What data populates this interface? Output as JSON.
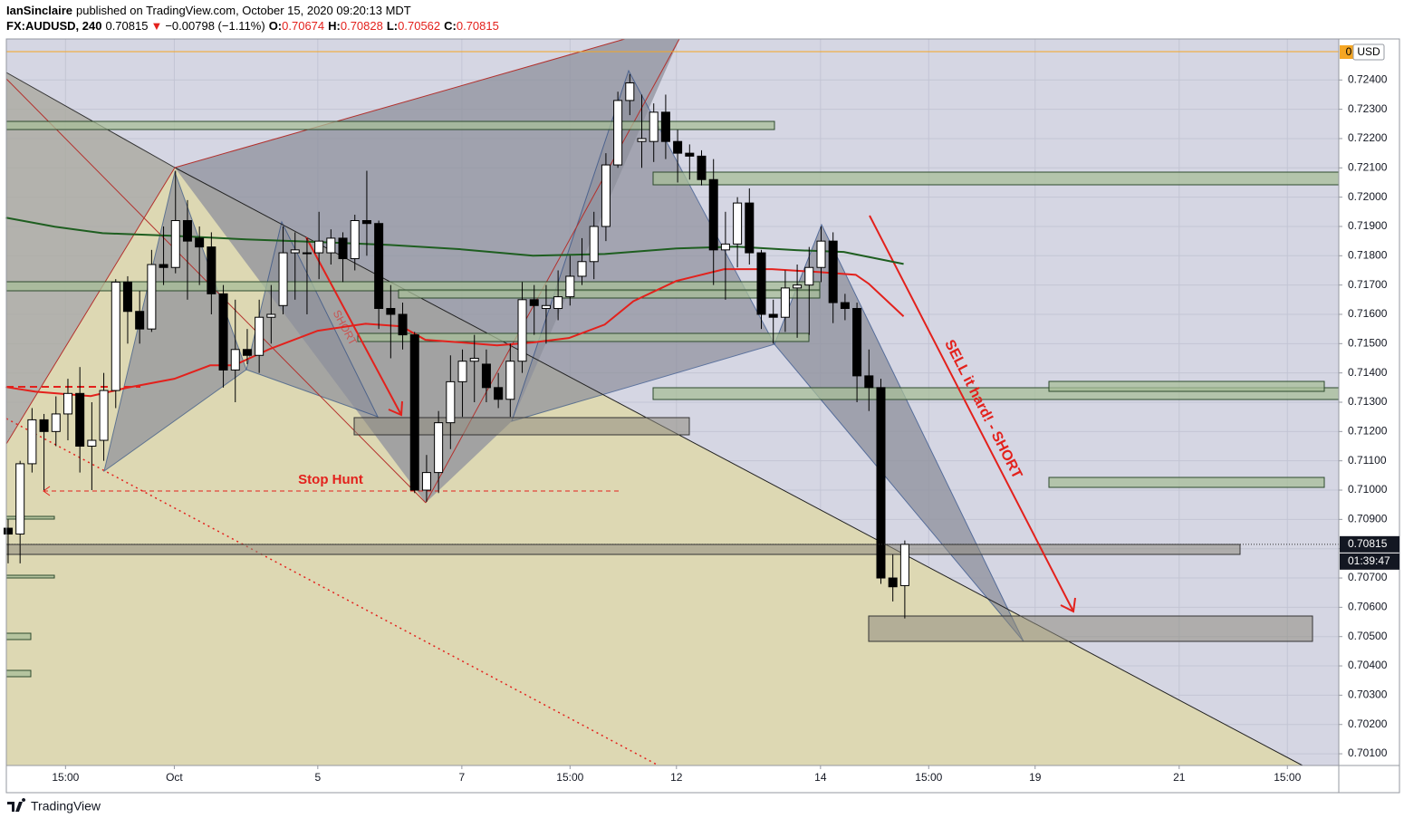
{
  "header": {
    "author": "IanSinclaire",
    "published": "published on TradingView.com, October 15, 2020 09:20:13 MDT",
    "symbol": "FX:AUDUSD, 240",
    "last": "0.70815",
    "arrow": "▼",
    "change": "−0.00798 (−1.11%)",
    "open_label": "O:",
    "open": "0.70674",
    "high_label": "H:",
    "high": "0.70828",
    "low_label": "L:",
    "low": "0.70562",
    "close_label": "C:",
    "close": "0.70815"
  },
  "chart_data": {
    "type": "candlestick",
    "x": [
      0,
      1,
      2,
      3,
      4,
      5,
      6,
      7,
      8,
      9,
      10,
      11,
      12,
      13,
      14,
      15,
      16,
      17,
      18,
      19,
      20,
      21,
      22,
      23,
      24,
      25,
      26,
      27,
      28,
      29,
      30,
      31,
      32,
      33,
      34,
      35,
      36,
      37,
      38,
      39,
      40,
      41,
      42,
      43,
      44,
      45,
      46,
      47,
      48,
      49,
      50,
      51,
      52,
      53,
      54,
      55,
      56,
      57,
      58,
      59,
      60,
      61,
      62,
      63,
      64,
      65,
      66,
      67,
      68,
      69,
      70,
      71,
      72,
      73,
      74,
      75
    ],
    "open": [
      0.7087,
      0.7085,
      0.7109,
      0.7124,
      0.712,
      0.7126,
      0.7133,
      0.7115,
      0.7117,
      0.7134,
      0.7171,
      0.7161,
      0.7155,
      0.7177,
      0.7176,
      0.7192,
      0.7186,
      0.7183,
      0.7167,
      0.7141,
      0.7148,
      0.7146,
      0.7159,
      0.7163,
      0.7181,
      0.7181,
      0.7181,
      0.7181,
      0.7186,
      0.7179,
      0.7192,
      0.7191,
      0.7162,
      0.716,
      0.7153,
      0.71,
      0.7106,
      0.7123,
      0.7137,
      0.7144,
      0.7143,
      0.7135,
      0.7131,
      0.7144,
      0.7165,
      0.7162,
      0.7162,
      0.7166,
      0.7173,
      0.7178,
      0.719,
      0.7211,
      0.7233,
      0.7219,
      0.7219,
      0.7229,
      0.7219,
      0.7215,
      0.7214,
      0.7206,
      0.7182,
      0.7184,
      0.7198,
      0.7181,
      0.716,
      0.7159,
      0.7169,
      0.717,
      0.7176,
      0.7185,
      0.7164,
      0.7162,
      0.7139,
      0.7135,
      0.707,
      0.70674
    ],
    "high": [
      0.709,
      0.711,
      0.7128,
      0.7126,
      0.7132,
      0.7138,
      0.7142,
      0.713,
      0.714,
      0.7172,
      0.7173,
      0.7168,
      0.7182,
      0.719,
      0.7209,
      0.7199,
      0.719,
      0.7188,
      0.717,
      0.7165,
      0.7155,
      0.7165,
      0.717,
      0.719,
      0.7188,
      0.7186,
      0.7195,
      0.7189,
      0.7188,
      0.7194,
      0.7209,
      0.7192,
      0.717,
      0.7164,
      0.7154,
      0.7112,
      0.7127,
      0.7146,
      0.7148,
      0.7153,
      0.7148,
      0.714,
      0.715,
      0.7171,
      0.717,
      0.717,
      0.7175,
      0.718,
      0.7186,
      0.7195,
      0.7215,
      0.7236,
      0.7242,
      0.7235,
      0.7232,
      0.7235,
      0.7223,
      0.7218,
      0.7216,
      0.7213,
      0.7195,
      0.72,
      0.7203,
      0.7182,
      0.7165,
      0.7175,
      0.7177,
      0.7183,
      0.719,
      0.7188,
      0.7167,
      0.7164,
      0.7148,
      0.7138,
      0.7078,
      0.70828
    ],
    "low": [
      0.7075,
      0.7075,
      0.7106,
      0.71,
      0.7115,
      0.7117,
      0.7106,
      0.71,
      0.711,
      0.7128,
      0.715,
      0.715,
      0.7154,
      0.717,
      0.7174,
      0.7165,
      0.717,
      0.716,
      0.7135,
      0.713,
      0.7143,
      0.714,
      0.715,
      0.716,
      0.7165,
      0.716,
      0.7172,
      0.7177,
      0.7171,
      0.7175,
      0.718,
      0.7155,
      0.7145,
      0.7148,
      0.7099,
      0.7096,
      0.7099,
      0.7114,
      0.7125,
      0.713,
      0.713,
      0.7128,
      0.7125,
      0.714,
      0.7153,
      0.715,
      0.7158,
      0.7163,
      0.717,
      0.7172,
      0.7185,
      0.721,
      0.7228,
      0.721,
      0.7212,
      0.7213,
      0.7205,
      0.7206,
      0.7204,
      0.717,
      0.7165,
      0.7176,
      0.7177,
      0.7155,
      0.715,
      0.7154,
      0.7152,
      0.7153,
      0.7171,
      0.7157,
      0.7158,
      0.713,
      0.7127,
      0.7068,
      0.7062,
      0.70562
    ],
    "close": [
      0.7085,
      0.7109,
      0.7124,
      0.712,
      0.7126,
      0.7133,
      0.7115,
      0.7117,
      0.7134,
      0.7171,
      0.7161,
      0.7155,
      0.7177,
      0.7176,
      0.7192,
      0.7185,
      0.7183,
      0.7167,
      0.7141,
      0.7148,
      0.7146,
      0.7159,
      0.716,
      0.7181,
      0.7182,
      0.7181,
      0.7185,
      0.7186,
      0.7179,
      0.7192,
      0.7191,
      0.7162,
      0.716,
      0.7153,
      0.71,
      0.7106,
      0.7123,
      0.7137,
      0.7144,
      0.7145,
      0.7135,
      0.7131,
      0.7144,
      0.7165,
      0.7163,
      0.7163,
      0.7166,
      0.7173,
      0.7178,
      0.719,
      0.7211,
      0.7233,
      0.7239,
      0.722,
      0.7229,
      0.7219,
      0.7215,
      0.7214,
      0.7206,
      0.7182,
      0.7184,
      0.7198,
      0.7181,
      0.716,
      0.7159,
      0.7169,
      0.717,
      0.7176,
      0.7185,
      0.7164,
      0.7162,
      0.7139,
      0.7135,
      0.707,
      0.7067,
      0.70815
    ],
    "up_color": "#ffffff",
    "down_color": "#000000",
    "moving_averages": [
      {
        "color": "#e3211c",
        "x": [
          -0.2,
          2.3,
          6.9,
          9.9,
          13.9,
          16.9,
          18.9,
          21.9,
          25.9,
          29.9,
          32.9,
          34.9,
          37.9,
          40.9,
          43.9,
          46.9,
          49.9,
          52.3,
          55.9,
          59.9,
          63.9,
          67.9,
          70.9,
          72.0,
          74.9
        ],
        "values": [
          0.71352,
          0.71336,
          0.71321,
          0.71349,
          0.7138,
          0.71426,
          0.71426,
          0.71482,
          0.71544,
          0.71568,
          0.71559,
          0.71513,
          0.71504,
          0.71494,
          0.71504,
          0.71519,
          0.71565,
          0.71645,
          0.71714,
          0.71754,
          0.71754,
          0.71744,
          0.71735,
          0.71704,
          0.71593
        ]
      },
      {
        "color": "#1e5e20",
        "x": [
          -0.2,
          3.9,
          7.9,
          13.9,
          19.9,
          25.9,
          31.9,
          37.9,
          43.9,
          49.9,
          55.9,
          60.9,
          65.9,
          69.9,
          74.9
        ],
        "values": [
          0.7193,
          0.71899,
          0.71877,
          0.71868,
          0.71856,
          0.71847,
          0.71837,
          0.71822,
          0.718,
          0.71806,
          0.71825,
          0.71831,
          0.71819,
          0.71813,
          0.71772
        ]
      }
    ],
    "xlim": [
      -0.15,
      111.3
    ],
    "xticks": [
      {
        "value": 4.8,
        "label": "15:00"
      },
      {
        "value": 13.9,
        "label": "Oct"
      },
      {
        "value": 25.9,
        "label": "5"
      },
      {
        "value": 37.95,
        "label": "7"
      },
      {
        "value": 47,
        "label": "15:00"
      },
      {
        "value": 55.9,
        "label": "12"
      },
      {
        "value": 67.95,
        "label": "14"
      },
      {
        "value": 77,
        "label": "15:00"
      },
      {
        "value": 85.9,
        "label": "19"
      },
      {
        "value": 97.95,
        "label": "21"
      },
      {
        "value": 107,
        "label": "15:00"
      }
    ],
    "ylim": [
      0.7006,
      0.7254
    ],
    "yticks": [
      {
        "value": 0.701,
        "label": "0.70100"
      },
      {
        "value": 0.702,
        "label": "0.70200"
      },
      {
        "value": 0.703,
        "label": "0.70300"
      },
      {
        "value": 0.704,
        "label": "0.70400"
      },
      {
        "value": 0.705,
        "label": "0.70500"
      },
      {
        "value": 0.706,
        "label": "0.70600"
      },
      {
        "value": 0.707,
        "label": "0.70700"
      },
      {
        "value": 0.708,
        "label": "0.70800"
      },
      {
        "value": 0.709,
        "label": "0.70900"
      },
      {
        "value": 0.71,
        "label": "0.71000"
      },
      {
        "value": 0.711,
        "label": "0.71100"
      },
      {
        "value": 0.712,
        "label": "0.71200"
      },
      {
        "value": 0.713,
        "label": "0.71300"
      },
      {
        "value": 0.714,
        "label": "0.71400"
      },
      {
        "value": 0.715,
        "label": "0.71500"
      },
      {
        "value": 0.716,
        "label": "0.71600"
      },
      {
        "value": 0.717,
        "label": "0.71700"
      },
      {
        "value": 0.718,
        "label": "0.71800"
      },
      {
        "value": 0.719,
        "label": "0.71900"
      },
      {
        "value": 0.72,
        "label": "0.72000"
      },
      {
        "value": 0.721,
        "label": "0.72100"
      },
      {
        "value": 0.722,
        "label": "0.72200"
      },
      {
        "value": 0.723,
        "label": "0.72300"
      },
      {
        "value": 0.724,
        "label": "0.72400"
      }
    ],
    "grid": true,
    "last_price_label": "0.70815",
    "countdown": "01:39:47",
    "axis_badge": "0",
    "currency": "USD",
    "annotations": [
      "SHORT",
      "Stop Hunt",
      "SELL it hard! - SHORT"
    ]
  },
  "footer": {
    "brand": "TradingView"
  }
}
